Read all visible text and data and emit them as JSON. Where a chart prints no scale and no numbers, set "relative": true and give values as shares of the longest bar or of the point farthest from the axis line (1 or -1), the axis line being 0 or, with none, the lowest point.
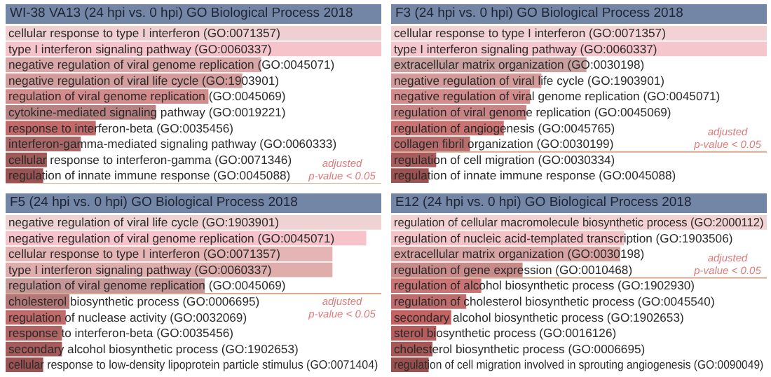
{
  "chart_data": [
    {
      "type": "bar",
      "orientation": "horizontal",
      "relative": true,
      "title": "WI-38 VA13 (24 hpi vs. 0 hpi) GO Biological Process 2018",
      "grid": false,
      "legend": false,
      "categories": [
        "cellular response to type I interferon (GO:0071357)",
        "type I interferon signaling pathway (GO:0060337)",
        "negative regulation of viral genome replication (GO:0045071)",
        "negative regulation of viral life cycle (GO:1903901)",
        "regulation of viral genome replication (GO:0045069)",
        "cytokine-mediated signaling pathway (GO:0019221)",
        "response to interferon-beta (GO:0035456)",
        "interferon-gamma-mediated signaling pathway (GO:0060333)",
        "cellular response to interferon-gamma (GO:0071346)",
        "regulation of innate immune response (GO:0045088)"
      ],
      "values": [
        1,
        1,
        0.68,
        0.63,
        0.54,
        0.4,
        0.24,
        0.2,
        0.11,
        0.1
      ],
      "colors": [
        "#efcfcf",
        "#f5c3c9",
        "#d9a7a7",
        "#d39d9d",
        "#d38b8b",
        "#b98282",
        "#c26a6a",
        "#a96767",
        "#a05a5a",
        "#9b5252"
      ],
      "ref_lines": [
        {
          "axis": "y",
          "value": "regulation of innate immune response (GO:0045088)",
          "label": "adjusted p-value < 0.05",
          "color": "#d9a890"
        }
      ]
    },
    {
      "type": "bar",
      "orientation": "horizontal",
      "relative": true,
      "title": "F3 (24 hpi vs. 0 hpi) GO Biological Process 2018",
      "grid": false,
      "legend": false,
      "categories": [
        "cellular response to type I interferon (GO:0071357)",
        "type I interferon signaling pathway (GO:0060337)",
        "extracellular matrix organization (GO:0030198)",
        "negative regulation of viral life cycle (GO:1903901)",
        "negative regulation of viral genome replication (GO:0045071)",
        "regulation of viral genome replication (GO:0045069)",
        "regulation of angiogenesis (GO:0045765)",
        "collagen fibril organization (GO:0030199)",
        "regulation of cell migration (GO:0030334)",
        "regulation of innate immune response (GO:0045088)"
      ],
      "values": [
        1,
        1,
        0.52,
        0.4,
        0.37,
        0.36,
        0.3,
        0.21,
        0.12,
        0.1
      ],
      "colors": [
        "#f2d2d2",
        "#f5c6cc",
        "#c9a0a0",
        "#d39b9b",
        "#d38b8b",
        "#c98585",
        "#c97373",
        "#b86c6c",
        "#a85c5c",
        "#9d5252"
      ],
      "ref_lines": [
        {
          "axis": "y",
          "value": "collagen fibril organization (GO:0030199)",
          "label": "adjusted p-value < 0.05",
          "color": "#d9a890"
        }
      ]
    },
    {
      "type": "bar",
      "orientation": "horizontal",
      "relative": true,
      "title": "F5 (24 hpi vs. 0 hpi) GO Biological Process 2018",
      "grid": false,
      "legend": false,
      "categories": [
        "negative regulation of viral life cycle (GO:1903901)",
        "negative regulation of viral genome replication (GO:0045071)",
        "cellular response to type I interferon (GO:0071357)",
        "type I interferon signaling pathway (GO:0060337)",
        "regulation of viral genome replication (GO:0045069)",
        "cholesterol biosynthetic process (GO:0006695)",
        "regulation of nuclease activity (GO:0032069)",
        "response to interferon-beta (GO:0035456)",
        "secondary alcohol biosynthetic process (GO:1902653)",
        "cellular response to low-density lipoprotein particle stimulus (GO:0071404)"
      ],
      "values": [
        1,
        0.96,
        0.87,
        0.87,
        0.53,
        0.17,
        0.16,
        0.15,
        0.15,
        0.1
      ],
      "colors": [
        "#efd3d3",
        "#f5c3c9",
        "#e5b5b5",
        "#e0adad",
        "#c69797",
        "#b57878",
        "#c06a6a",
        "#b06464",
        "#a65a5a",
        "#9b5252"
      ],
      "ref_lines": [
        {
          "axis": "y",
          "value": "regulation of viral genome replication (GO:0045069)",
          "label": "adjusted p-value < 0.05",
          "color": "#d9a890"
        }
      ]
    },
    {
      "type": "bar",
      "orientation": "horizontal",
      "relative": true,
      "title": "E12 (24 hpi vs. 0 hpi) GO Biological Process 2018",
      "grid": false,
      "legend": false,
      "categories": [
        "regulation of cellular macromolecule biosynthetic process (GO:2000112)",
        "regulation of nucleic acid-templated transcription (GO:1903506)",
        "extracellular matrix organization (GO:0030198)",
        "regulation of gene expression (GO:0010468)",
        "regulation of alcohol biosynthetic process (GO:1902930)",
        "regulation of cholesterol biosynthetic process (GO:0045540)",
        "secondary alcohol biosynthetic process (GO:1902653)",
        "sterol biosynthetic process (GO:0016126)",
        "cholesterol biosynthetic process (GO:0006695)",
        "regulation of cell migration involved in sprouting angiogenesis (GO:0090049)"
      ],
      "values": [
        1,
        0.62,
        0.61,
        0.35,
        0.24,
        0.2,
        0.16,
        0.12,
        0.11,
        0.1
      ],
      "colors": [
        "#f2d2d2",
        "#f3c3c7",
        "#d8a3a3",
        "#c98a8a",
        "#c97575",
        "#bf6c6c",
        "#c26262",
        "#b55c5c",
        "#a85656",
        "#9b5050"
      ],
      "ref_lines": [
        {
          "axis": "y",
          "value": "regulation of gene expression (GO:0010468)",
          "label": "adjusted p-value < 0.05",
          "color": "#d9a890"
        }
      ]
    }
  ]
}
